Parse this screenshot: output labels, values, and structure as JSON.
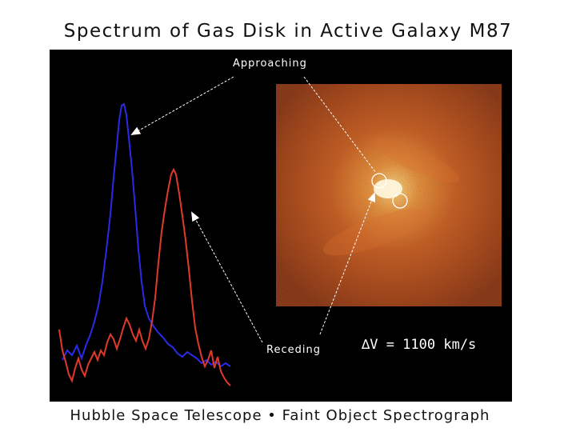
{
  "title": "Spectrum of Gas Disk in Active Galaxy M87",
  "footer": "Hubble Space Telescope • Faint Object Spectrograph",
  "labels": {
    "approaching": "Approaching",
    "receding": "Receding",
    "delta_v": "∆V = 1100 km/s"
  },
  "colors": {
    "approaching_line": "#2a2ae8",
    "receding_line": "#e03a2a",
    "background": "#000000",
    "image_glow": "#e07a30"
  }
}
